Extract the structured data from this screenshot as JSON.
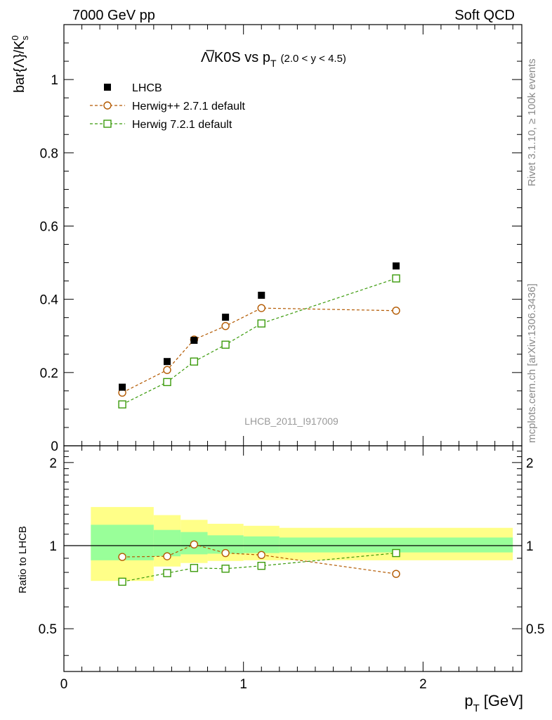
{
  "header": {
    "left": "7000 GeV pp",
    "right": "Soft QCD"
  },
  "side": {
    "rivet": "Rivet 3.1.10, ≥ 100k events",
    "mcplots": "mcplots.cern.ch [arXiv:1306.3436]"
  },
  "watermark": "LHCB_2011_I917009",
  "chart_data": [
    {
      "type": "scatter",
      "title_main": "Λ̅/K0S vs p",
      "title_sub": "T",
      "title_range": "(2.0 < y < 4.5)",
      "ylabel_main": "bar{Λ}/K",
      "ylabel_sup": "0",
      "ylabel_sub": "s",
      "xlim": [
        0,
        2.55
      ],
      "ylim": [
        0,
        1.15
      ],
      "yticks": [
        0,
        0.2,
        0.4,
        0.6,
        0.8,
        1
      ],
      "ytick_labels": [
        "0",
        "0.2",
        "0.4",
        "0.6",
        "0.8",
        "1"
      ],
      "legend_position": "top-left",
      "colors": {
        "data": "#000000",
        "herwig_pp": "#b35900",
        "herwig7": "#3a9a0a"
      },
      "series": [
        {
          "name": "LHCB",
          "style": "filled-square",
          "x": [
            0.325,
            0.575,
            0.725,
            0.9,
            1.1,
            1.85
          ],
          "y": [
            0.16,
            0.23,
            0.288,
            0.351,
            0.411,
            0.491
          ]
        },
        {
          "name": "Herwig++ 2.7.1 default",
          "style": "open-circle-dashed",
          "x": [
            0.325,
            0.575,
            0.725,
            0.9,
            1.1,
            1.85
          ],
          "y": [
            0.145,
            0.207,
            0.29,
            0.327,
            0.376,
            0.369
          ]
        },
        {
          "name": "Herwig 7.2.1 default",
          "style": "open-square-dashed",
          "x": [
            0.325,
            0.575,
            0.725,
            0.9,
            1.1,
            1.85
          ],
          "y": [
            0.113,
            0.174,
            0.23,
            0.276,
            0.334,
            0.457
          ]
        }
      ]
    },
    {
      "type": "scatter",
      "ylabel": "Ratio to LHCB",
      "xlabel_main": "p",
      "xlabel_sub": "T",
      "xlabel_unit": "[GeV]",
      "xlim": [
        0,
        2.55
      ],
      "ylim": [
        0.35,
        2.3
      ],
      "yticks": [
        0.5,
        1,
        2
      ],
      "ytick_labels": [
        "0.5",
        "1",
        "2"
      ],
      "xticks": [
        0,
        1,
        2
      ],
      "xtick_labels": [
        "0",
        "1",
        "2"
      ],
      "uncertainty_bands": [
        {
          "x0": 0.15,
          "x1": 0.5,
          "inner": [
            0.885,
            1.19
          ],
          "outer": [
            0.745,
            1.38
          ]
        },
        {
          "x0": 0.5,
          "x1": 0.65,
          "inner": [
            0.915,
            1.14
          ],
          "outer": [
            0.84,
            1.29
          ]
        },
        {
          "x0": 0.65,
          "x1": 0.8,
          "inner": [
            0.93,
            1.12
          ],
          "outer": [
            0.865,
            1.24
          ]
        },
        {
          "x0": 0.8,
          "x1": 1.0,
          "inner": [
            0.935,
            1.09
          ],
          "outer": [
            0.88,
            1.2
          ]
        },
        {
          "x0": 1.0,
          "x1": 1.2,
          "inner": [
            0.94,
            1.08
          ],
          "outer": [
            0.885,
            1.18
          ]
        },
        {
          "x0": 1.2,
          "x1": 2.5,
          "inner": [
            0.945,
            1.07
          ],
          "outer": [
            0.885,
            1.16
          ]
        }
      ],
      "series": [
        {
          "name": "Herwig++ 2.7.1 default",
          "style": "open-circle-dashed",
          "x": [
            0.325,
            0.575,
            0.725,
            0.9,
            1.1,
            1.85
          ],
          "y": [
            0.91,
            0.915,
            1.01,
            0.94,
            0.925,
            0.79
          ]
        },
        {
          "name": "Herwig 7.2.1 default",
          "style": "open-square-dashed",
          "x": [
            0.325,
            0.575,
            0.725,
            0.9,
            1.1,
            1.85
          ],
          "y": [
            0.74,
            0.795,
            0.83,
            0.825,
            0.845,
            0.94
          ]
        }
      ]
    }
  ]
}
